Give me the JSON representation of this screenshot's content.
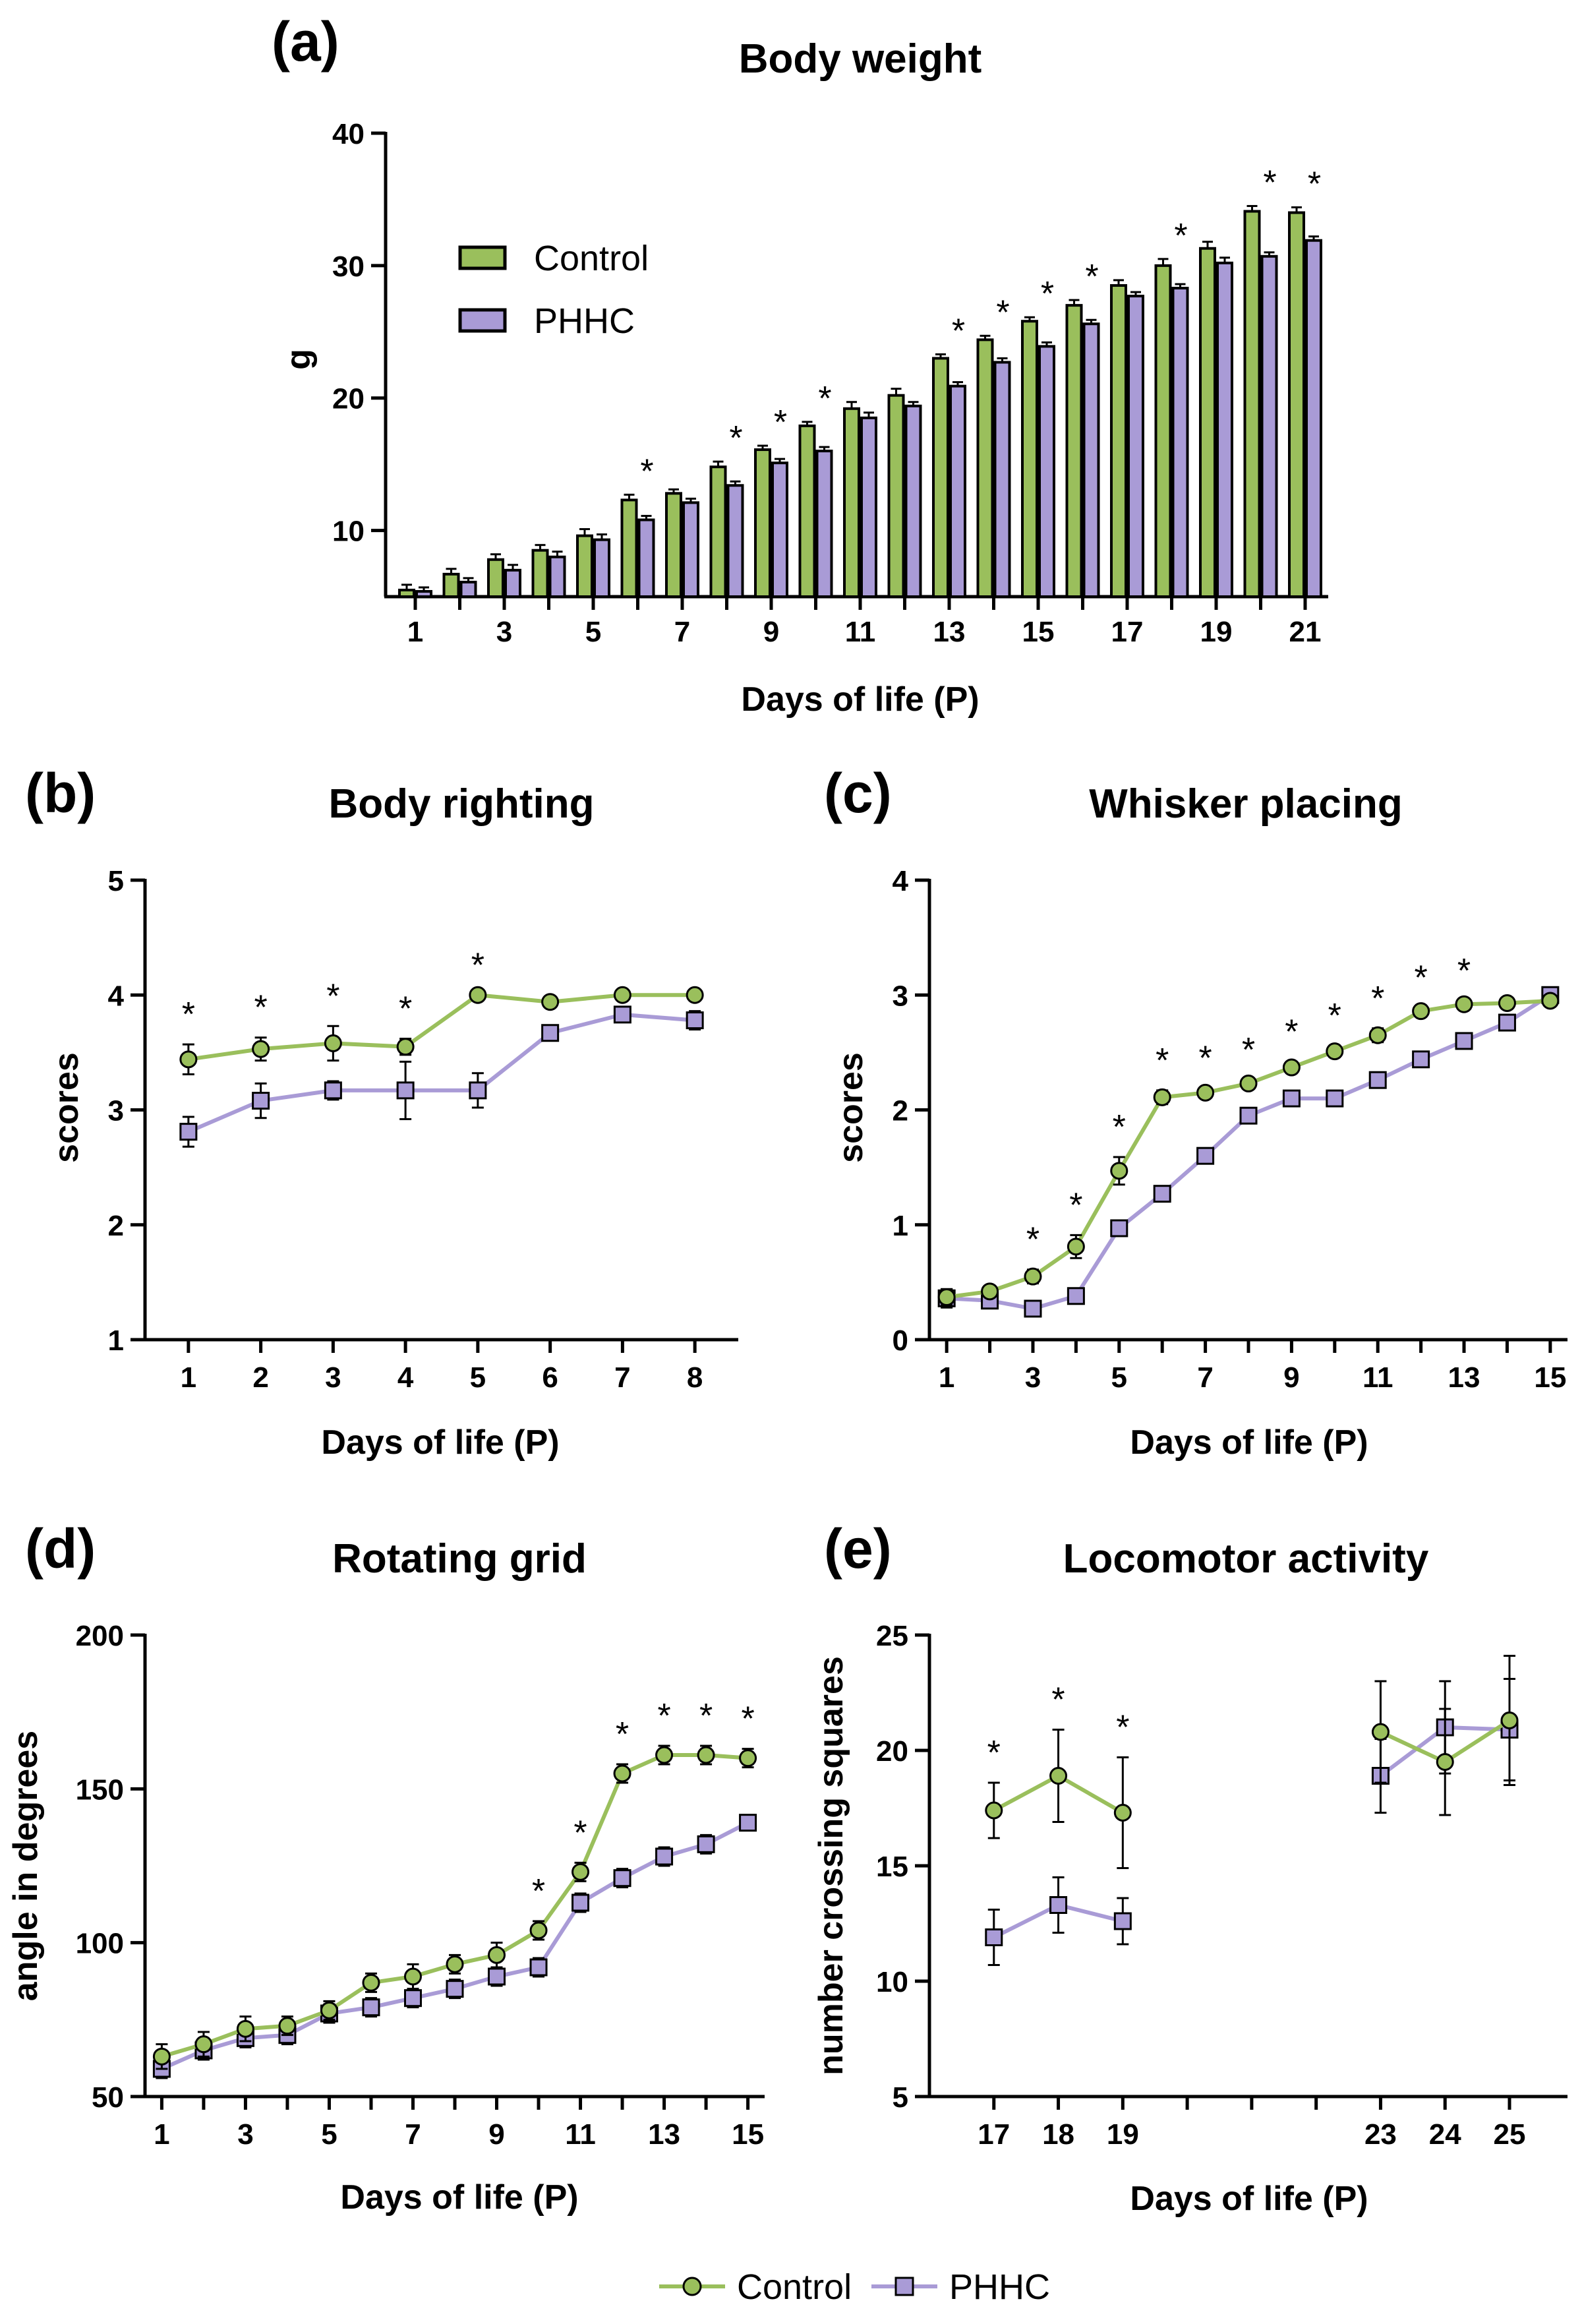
{
  "colors": {
    "control": "#9ABF5C",
    "phhc": "#A99BD6",
    "axis": "#000000"
  },
  "legend_bottom": {
    "control": "Control",
    "phhc": "PHHC"
  },
  "chart_data": [
    {
      "id": "a",
      "panel_label": "(a)",
      "type": "bar",
      "title": "Body weight",
      "xlabel": "Days of life (P)",
      "ylabel": "g",
      "ylim": [
        5,
        40
      ],
      "yticks": [
        10,
        20,
        30,
        40
      ],
      "categories": [
        1,
        2,
        3,
        4,
        5,
        6,
        7,
        8,
        9,
        10,
        11,
        12,
        13,
        14,
        15,
        16,
        17,
        18,
        19,
        20,
        21
      ],
      "xtick_labels": [
        "1",
        "3",
        "5",
        "7",
        "9",
        "11",
        "13",
        "15",
        "17",
        "19",
        "21"
      ],
      "legend": {
        "position": "upper-left",
        "entries": [
          "Control",
          "PHHC"
        ]
      },
      "series": [
        {
          "name": "Control",
          "values": [
            5.5,
            6.7,
            7.8,
            8.5,
            9.6,
            12.3,
            12.8,
            14.8,
            16.1,
            17.9,
            19.2,
            20.2,
            23.0,
            24.4,
            25.8,
            27.0,
            28.5,
            30.0,
            31.3,
            34.1,
            34.0
          ],
          "errors": [
            0.4,
            0.4,
            0.4,
            0.4,
            0.5,
            0.4,
            0.3,
            0.4,
            0.3,
            0.3,
            0.5,
            0.5,
            0.3,
            0.3,
            0.3,
            0.4,
            0.4,
            0.5,
            0.5,
            0.4,
            0.4
          ]
        },
        {
          "name": "PHHC",
          "values": [
            5.4,
            6.1,
            7.0,
            8.0,
            9.3,
            10.8,
            12.1,
            13.4,
            15.1,
            16.0,
            18.5,
            19.4,
            20.9,
            22.7,
            23.9,
            25.6,
            27.7,
            28.3,
            30.2,
            30.7,
            31.9
          ],
          "errors": [
            0.3,
            0.3,
            0.4,
            0.4,
            0.4,
            0.3,
            0.3,
            0.3,
            0.3,
            0.3,
            0.4,
            0.3,
            0.3,
            0.3,
            0.3,
            0.3,
            0.3,
            0.3,
            0.4,
            0.3,
            0.3
          ]
        }
      ],
      "significant_days": [
        6,
        8,
        9,
        10,
        13,
        14,
        15,
        16,
        18,
        20,
        21
      ],
      "annotation": "*"
    },
    {
      "id": "b",
      "panel_label": "(b)",
      "type": "line",
      "title": "Body righting",
      "xlabel": "Days of life (P)",
      "ylabel": "scores",
      "xlim": [
        0.4,
        8.6
      ],
      "ylim": [
        1,
        5
      ],
      "yticks": [
        1,
        2,
        3,
        4,
        5
      ],
      "x": [
        1,
        2,
        3,
        4,
        5,
        6,
        7,
        8
      ],
      "xtick_labels": [
        "1",
        "2",
        "3",
        "4",
        "5",
        "6",
        "7",
        "8"
      ],
      "series": [
        {
          "name": "Control",
          "values": [
            3.44,
            3.53,
            3.58,
            3.55,
            4.0,
            3.94,
            4.0,
            4.0
          ],
          "errors": [
            0.13,
            0.1,
            0.15,
            0.07,
            0,
            0,
            0,
            0
          ]
        },
        {
          "name": "PHHC",
          "values": [
            2.81,
            3.08,
            3.17,
            3.17,
            3.17,
            3.67,
            3.83,
            3.78
          ],
          "errors": [
            0.13,
            0.15,
            0.08,
            0.25,
            0.15,
            0.04,
            0.06,
            0.08
          ]
        }
      ],
      "significant_x": [
        1,
        2,
        3,
        4,
        5
      ],
      "annotation": "*"
    },
    {
      "id": "c",
      "panel_label": "(c)",
      "type": "line",
      "title": "Whisker placing",
      "xlabel": "Days of life (P)",
      "ylabel": "scores",
      "xlim": [
        0.6,
        15.4
      ],
      "ylim": [
        0,
        4
      ],
      "yticks": [
        0,
        1,
        2,
        3,
        4
      ],
      "x": [
        1,
        2,
        3,
        4,
        5,
        6,
        7,
        8,
        9,
        10,
        11,
        12,
        13,
        14,
        15
      ],
      "xtick_labels": [
        "1",
        "3",
        "5",
        "7",
        "9",
        "11",
        "13",
        "15"
      ],
      "series": [
        {
          "name": "Control",
          "values": [
            0.37,
            0.42,
            0.55,
            0.81,
            1.47,
            2.11,
            2.15,
            2.23,
            2.37,
            2.51,
            2.65,
            2.86,
            2.92,
            2.93,
            2.95
          ],
          "errors": [
            0.07,
            0.05,
            0.06,
            0.1,
            0.12,
            0.06,
            0.04,
            0.03,
            0.05,
            0.05,
            0.06,
            0.03,
            0.03,
            0.02,
            0.02
          ]
        },
        {
          "name": "PHHC",
          "values": [
            0.36,
            0.34,
            0.27,
            0.38,
            0.97,
            1.27,
            1.6,
            1.95,
            2.1,
            2.1,
            2.26,
            2.44,
            2.6,
            2.76,
            3.0
          ],
          "errors": [
            0.08,
            0.04,
            0.03,
            0.04,
            0.06,
            0.05,
            0.04,
            0.03,
            0.03,
            0.03,
            0.04,
            0.03,
            0.03,
            0.03,
            0.0
          ]
        }
      ],
      "significant_x": [
        3,
        4,
        5,
        6,
        7,
        8,
        9,
        10,
        11,
        12,
        13
      ],
      "annotation": "*"
    },
    {
      "id": "d",
      "panel_label": "(d)",
      "type": "line",
      "title": "Rotating grid",
      "xlabel": "Days of life (P)",
      "ylabel": "angle in degrees",
      "xlim": [
        0.6,
        15.4
      ],
      "ylim": [
        50,
        200
      ],
      "yticks": [
        50,
        100,
        150,
        200
      ],
      "x": [
        1,
        2,
        3,
        4,
        5,
        6,
        7,
        8,
        9,
        10,
        11,
        12,
        13,
        14,
        15
      ],
      "xtick_labels": [
        "1",
        "3",
        "5",
        "7",
        "9",
        "11",
        "13",
        "15"
      ],
      "series": [
        {
          "name": "Control",
          "values": [
            63,
            67,
            72,
            73,
            78,
            87,
            89,
            93,
            96,
            104,
            123,
            155,
            161,
            161,
            160
          ],
          "errors": [
            4,
            4,
            4,
            3,
            3,
            3,
            4,
            3,
            4,
            3,
            3,
            3,
            3,
            3,
            3
          ]
        },
        {
          "name": "PHHC",
          "values": [
            59,
            65,
            69,
            70,
            77,
            79,
            82,
            85,
            89,
            92,
            113,
            121,
            128,
            132,
            139
          ],
          "errors": [
            3,
            3,
            3,
            3,
            3,
            3,
            3,
            3,
            3,
            3,
            3,
            3,
            3,
            3,
            2
          ]
        }
      ],
      "significant_x": [
        10,
        11,
        12,
        13,
        14,
        15
      ],
      "annotation": "*"
    },
    {
      "id": "e",
      "panel_label": "(e)",
      "type": "line",
      "title": "Locomotor activity",
      "xlabel": "Days of life (P)",
      "ylabel": "number crossing squares",
      "xlim": [
        16.0,
        25.9
      ],
      "ylim": [
        5,
        25
      ],
      "yticks": [
        5,
        10,
        15,
        20,
        25
      ],
      "x": [
        17,
        18,
        19,
        23,
        24,
        25
      ],
      "xtick_labels": [
        "17",
        "18",
        "19",
        "23",
        "24",
        "25"
      ],
      "minor_xticks": [
        20,
        21,
        22
      ],
      "segments": [
        [
          0,
          1,
          2
        ],
        [
          3,
          4,
          5
        ]
      ],
      "series": [
        {
          "name": "Control",
          "values": [
            17.4,
            18.9,
            17.3,
            20.8,
            19.5,
            21.3
          ],
          "errors": [
            1.2,
            2.0,
            2.4,
            2.2,
            2.3,
            2.8
          ]
        },
        {
          "name": "PHHC",
          "values": [
            11.9,
            13.3,
            12.6,
            18.9,
            21.0,
            20.9
          ],
          "errors": [
            1.2,
            1.2,
            1.0,
            1.6,
            2.0,
            2.2
          ]
        }
      ],
      "significant_x": [
        17,
        18,
        19
      ],
      "annotation": "*"
    }
  ]
}
